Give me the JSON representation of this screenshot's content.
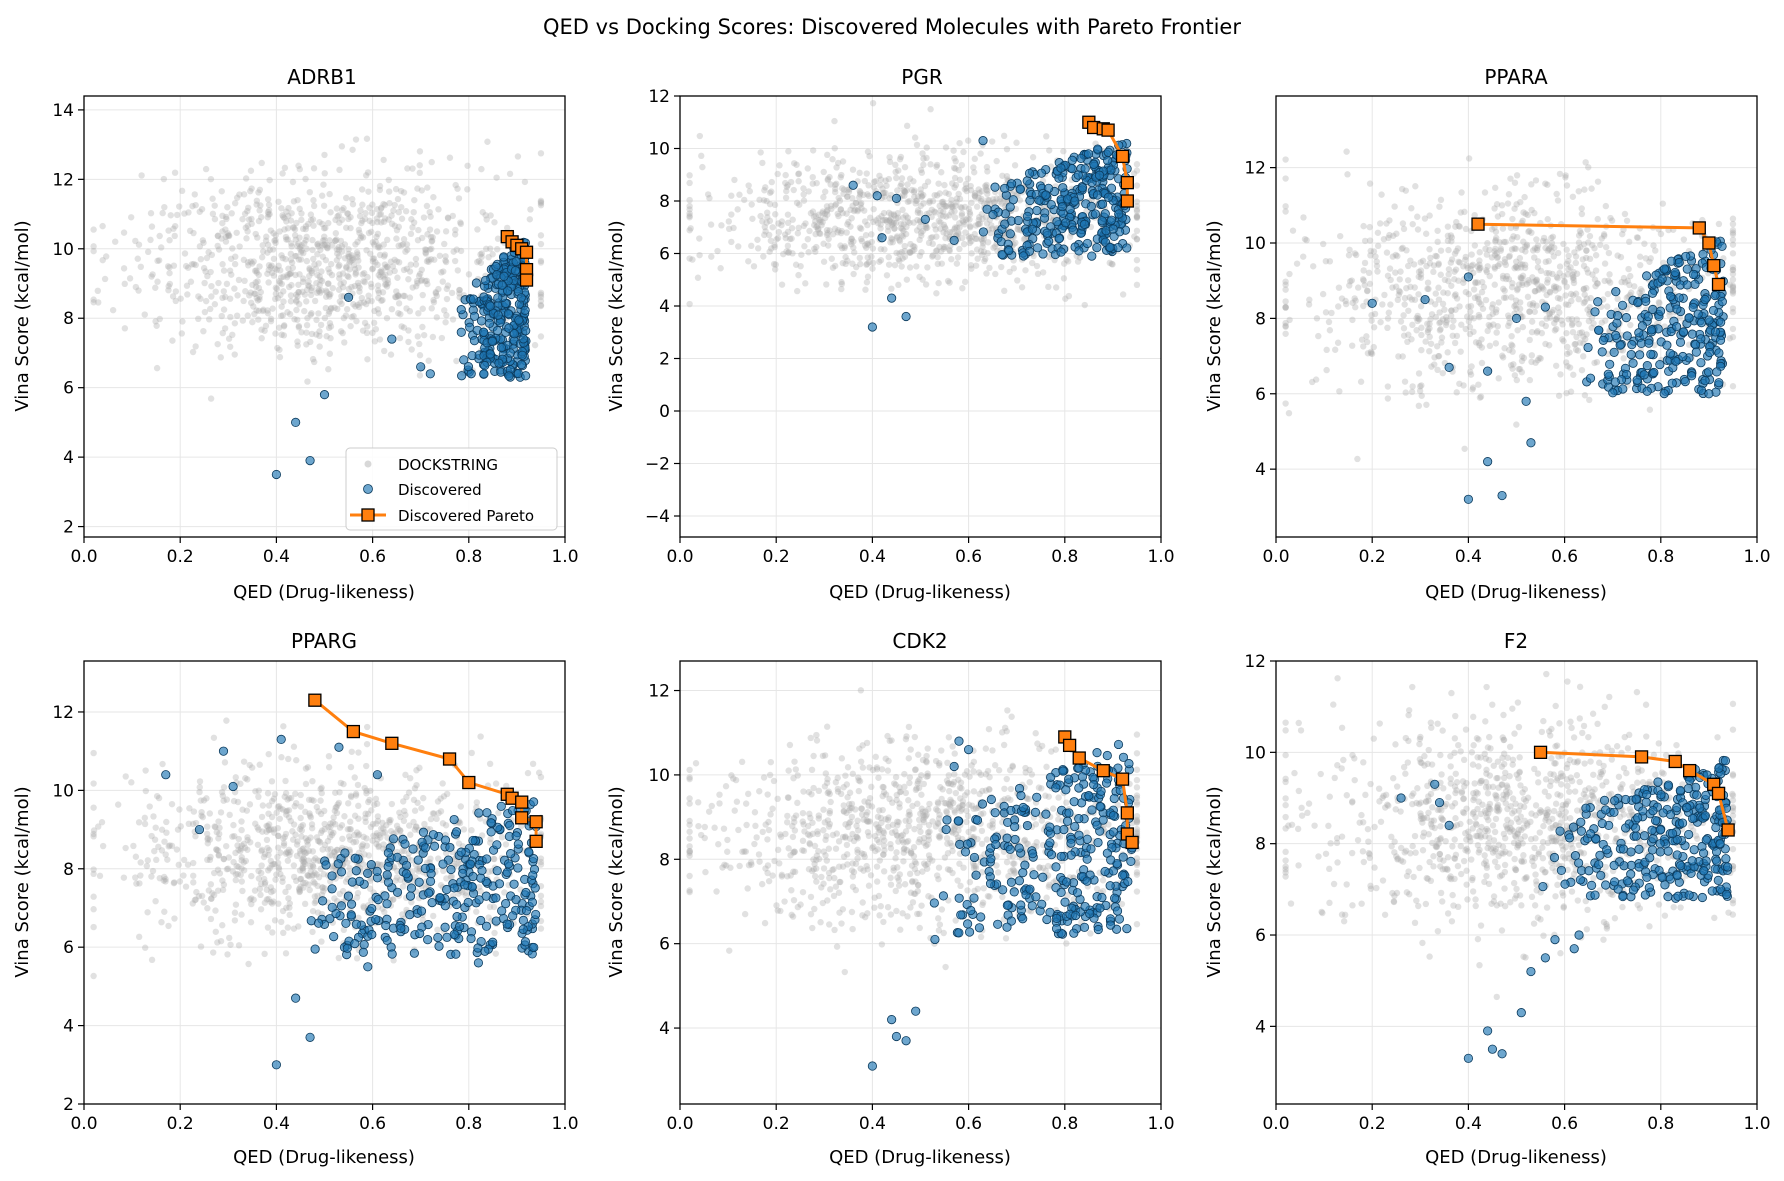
{
  "figure_title": "QED vs Docking Scores: Discovered Molecules with Pareto Frontier",
  "legend": {
    "dockstring_label": "DOCKSTRING",
    "discovered_label": "Discovered",
    "pareto_label": "Discovered Pareto",
    "placement": "lower-right of ADRB1"
  },
  "colors": {
    "dockstring": "#a9a9a9",
    "discovered": "#1f77b4",
    "pareto": "#ff7f0e",
    "grid": "#e6e6e6"
  },
  "chart_data": [
    {
      "type": "scatter",
      "title": "ADRB1",
      "xlabel": "QED (Drug-likeness)",
      "ylabel": "Vina Score (kcal/mol)",
      "xlim": [
        0,
        1
      ],
      "ylim": [
        1.7,
        14.4
      ],
      "xticks": [
        0,
        0.2,
        0.4,
        0.6,
        0.8,
        1.0
      ],
      "yticks": [
        2,
        4,
        6,
        8,
        10,
        12,
        14
      ],
      "grid": true,
      "dockstring_cloud": {
        "x_center": 0.5,
        "x_spread": 0.2,
        "y_center": 9.6,
        "y_spread": 1.3,
        "count": 1000
      },
      "discovered_cloud": {
        "x_min": 0.78,
        "x_max": 0.92,
        "y_min": 6.3,
        "y_max": 10.4,
        "count": 300
      },
      "discovered_outliers": [
        [
          0.4,
          3.5
        ],
        [
          0.44,
          5.0
        ],
        [
          0.47,
          3.9
        ],
        [
          0.5,
          5.8
        ],
        [
          0.55,
          8.6
        ],
        [
          0.64,
          7.4
        ],
        [
          0.7,
          6.6
        ],
        [
          0.72,
          6.4
        ]
      ],
      "pareto": [
        [
          0.88,
          10.35
        ],
        [
          0.89,
          10.2
        ],
        [
          0.9,
          10.1
        ],
        [
          0.91,
          10.0
        ],
        [
          0.92,
          9.9
        ],
        [
          0.92,
          9.4
        ],
        [
          0.92,
          9.1
        ]
      ]
    },
    {
      "type": "scatter",
      "title": "PGR",
      "xlabel": "QED (Drug-likeness)",
      "ylabel": "Vina Score (kcal/mol)",
      "xlim": [
        0,
        1
      ],
      "ylim": [
        -4.8,
        12.0
      ],
      "xticks": [
        0,
        0.2,
        0.4,
        0.6,
        0.8,
        1.0
      ],
      "yticks": [
        -4,
        -2,
        0,
        2,
        4,
        6,
        8,
        10,
        12
      ],
      "grid": true,
      "dockstring_cloud": {
        "x_center": 0.5,
        "x_spread": 0.22,
        "y_center": 7.3,
        "y_spread": 1.2,
        "count": 1000
      },
      "discovered_cloud": {
        "x_min": 0.62,
        "x_max": 0.93,
        "y_min": 5.9,
        "y_max": 10.4,
        "count": 300
      },
      "discovered_outliers": [
        [
          0.4,
          3.2
        ],
        [
          0.44,
          4.3
        ],
        [
          0.47,
          3.6
        ],
        [
          0.36,
          8.6
        ],
        [
          0.41,
          8.2
        ],
        [
          0.45,
          8.1
        ],
        [
          0.51,
          7.3
        ],
        [
          0.63,
          10.3
        ],
        [
          0.57,
          6.5
        ],
        [
          0.42,
          6.6
        ]
      ],
      "pareto": [
        [
          0.85,
          11.0
        ],
        [
          0.86,
          10.8
        ],
        [
          0.88,
          10.75
        ],
        [
          0.89,
          10.7
        ],
        [
          0.92,
          9.7
        ],
        [
          0.93,
          8.7
        ],
        [
          0.93,
          8.0
        ]
      ]
    },
    {
      "type": "scatter",
      "title": "PPARA",
      "xlabel": "QED (Drug-likeness)",
      "ylabel": "Vina Score (kcal/mol)",
      "xlim": [
        0,
        1
      ],
      "ylim": [
        2.2,
        13.9
      ],
      "xticks": [
        0,
        0.2,
        0.4,
        0.6,
        0.8,
        1.0
      ],
      "yticks": [
        4,
        6,
        8,
        10,
        12
      ],
      "grid": true,
      "dockstring_cloud": {
        "x_center": 0.5,
        "x_spread": 0.22,
        "y_center": 8.8,
        "y_spread": 1.3,
        "count": 1000
      },
      "discovered_cloud": {
        "x_min": 0.62,
        "x_max": 0.93,
        "y_min": 6.0,
        "y_max": 10.2,
        "count": 260
      },
      "discovered_outliers": [
        [
          0.4,
          3.2
        ],
        [
          0.44,
          4.2
        ],
        [
          0.47,
          3.3
        ],
        [
          0.2,
          8.4
        ],
        [
          0.31,
          8.5
        ],
        [
          0.36,
          6.7
        ],
        [
          0.4,
          9.1
        ],
        [
          0.44,
          6.6
        ],
        [
          0.5,
          8.0
        ],
        [
          0.52,
          5.8
        ],
        [
          0.53,
          4.7
        ],
        [
          0.56,
          8.3
        ],
        [
          0.9,
          6.0
        ]
      ],
      "pareto": [
        [
          0.42,
          10.5
        ],
        [
          0.88,
          10.4
        ],
        [
          0.9,
          10.0
        ],
        [
          0.91,
          9.4
        ],
        [
          0.92,
          8.9
        ]
      ]
    },
    {
      "type": "scatter",
      "title": "PPARG",
      "xlabel": "QED (Drug-likeness)",
      "ylabel": "Vina Score (kcal/mol)",
      "xlim": [
        0,
        1
      ],
      "ylim": [
        2.0,
        13.3
      ],
      "xticks": [
        0,
        0.2,
        0.4,
        0.6,
        0.8,
        1.0
      ],
      "yticks": [
        2,
        4,
        6,
        8,
        10,
        12
      ],
      "grid": true,
      "dockstring_cloud": {
        "x_center": 0.5,
        "x_spread": 0.22,
        "y_center": 8.4,
        "y_spread": 1.1,
        "count": 1000
      },
      "discovered_cloud": {
        "x_min": 0.45,
        "x_max": 0.94,
        "y_min": 5.8,
        "y_max": 9.9,
        "count": 300
      },
      "discovered_outliers": [
        [
          0.4,
          3.0
        ],
        [
          0.44,
          4.7
        ],
        [
          0.47,
          3.7
        ],
        [
          0.17,
          10.4
        ],
        [
          0.24,
          9.0
        ],
        [
          0.29,
          11.0
        ],
        [
          0.31,
          10.1
        ],
        [
          0.41,
          11.3
        ],
        [
          0.53,
          11.1
        ],
        [
          0.61,
          10.4
        ],
        [
          0.59,
          5.5
        ],
        [
          0.82,
          5.6
        ]
      ],
      "pareto": [
        [
          0.48,
          12.3
        ],
        [
          0.56,
          11.5
        ],
        [
          0.64,
          11.2
        ],
        [
          0.76,
          10.8
        ],
        [
          0.8,
          10.2
        ],
        [
          0.88,
          9.9
        ],
        [
          0.89,
          9.8
        ],
        [
          0.91,
          9.7
        ],
        [
          0.91,
          9.3
        ],
        [
          0.94,
          9.2
        ],
        [
          0.94,
          8.7
        ]
      ]
    },
    {
      "type": "scatter",
      "title": "CDK2",
      "xlabel": "QED (Drug-likeness)",
      "ylabel": "Vina Score (kcal/mol)",
      "xlim": [
        0,
        1
      ],
      "ylim": [
        2.2,
        12.7
      ],
      "xticks": [
        0,
        0.2,
        0.4,
        0.6,
        0.8,
        1.0
      ],
      "yticks": [
        4,
        6,
        8,
        10,
        12
      ],
      "grid": true,
      "dockstring_cloud": {
        "x_center": 0.5,
        "x_spread": 0.22,
        "y_center": 8.6,
        "y_spread": 1.1,
        "count": 1000
      },
      "discovered_cloud": {
        "x_min": 0.52,
        "x_max": 0.94,
        "y_min": 6.2,
        "y_max": 10.9,
        "count": 300
      },
      "discovered_outliers": [
        [
          0.4,
          3.1
        ],
        [
          0.44,
          4.2
        ],
        [
          0.45,
          3.8
        ],
        [
          0.47,
          3.7
        ],
        [
          0.49,
          4.4
        ],
        [
          0.53,
          6.1
        ],
        [
          0.58,
          10.8
        ],
        [
          0.6,
          10.6
        ],
        [
          0.57,
          10.2
        ]
      ],
      "pareto": [
        [
          0.8,
          10.9
        ],
        [
          0.81,
          10.7
        ],
        [
          0.83,
          10.4
        ],
        [
          0.88,
          10.1
        ],
        [
          0.92,
          9.9
        ],
        [
          0.93,
          9.1
        ],
        [
          0.93,
          8.6
        ],
        [
          0.94,
          8.4
        ]
      ]
    },
    {
      "type": "scatter",
      "title": "F2",
      "xlabel": "QED (Drug-likeness)",
      "ylabel": "Vina Score (kcal/mol)",
      "xlim": [
        0,
        1
      ],
      "ylim": [
        2.3,
        12.0
      ],
      "xticks": [
        0,
        0.2,
        0.4,
        0.6,
        0.8,
        1.0
      ],
      "yticks": [
        4,
        6,
        8,
        10,
        12
      ],
      "grid": true,
      "dockstring_cloud": {
        "x_center": 0.5,
        "x_spread": 0.22,
        "y_center": 8.5,
        "y_spread": 1.1,
        "count": 1000
      },
      "discovered_cloud": {
        "x_min": 0.55,
        "x_max": 0.94,
        "y_min": 6.8,
        "y_max": 9.9,
        "count": 300
      },
      "discovered_outliers": [
        [
          0.4,
          3.3
        ],
        [
          0.44,
          3.9
        ],
        [
          0.45,
          3.5
        ],
        [
          0.47,
          3.4
        ],
        [
          0.51,
          4.3
        ],
        [
          0.53,
          5.2
        ],
        [
          0.56,
          5.5
        ],
        [
          0.58,
          5.9
        ],
        [
          0.62,
          5.7
        ],
        [
          0.26,
          9.0
        ],
        [
          0.33,
          9.3
        ],
        [
          0.34,
          8.9
        ],
        [
          0.36,
          8.4
        ],
        [
          0.63,
          6.0
        ]
      ],
      "pareto": [
        [
          0.55,
          10.0
        ],
        [
          0.76,
          9.9
        ],
        [
          0.83,
          9.8
        ],
        [
          0.86,
          9.6
        ],
        [
          0.91,
          9.3
        ],
        [
          0.92,
          9.1
        ],
        [
          0.94,
          8.3
        ]
      ]
    }
  ]
}
